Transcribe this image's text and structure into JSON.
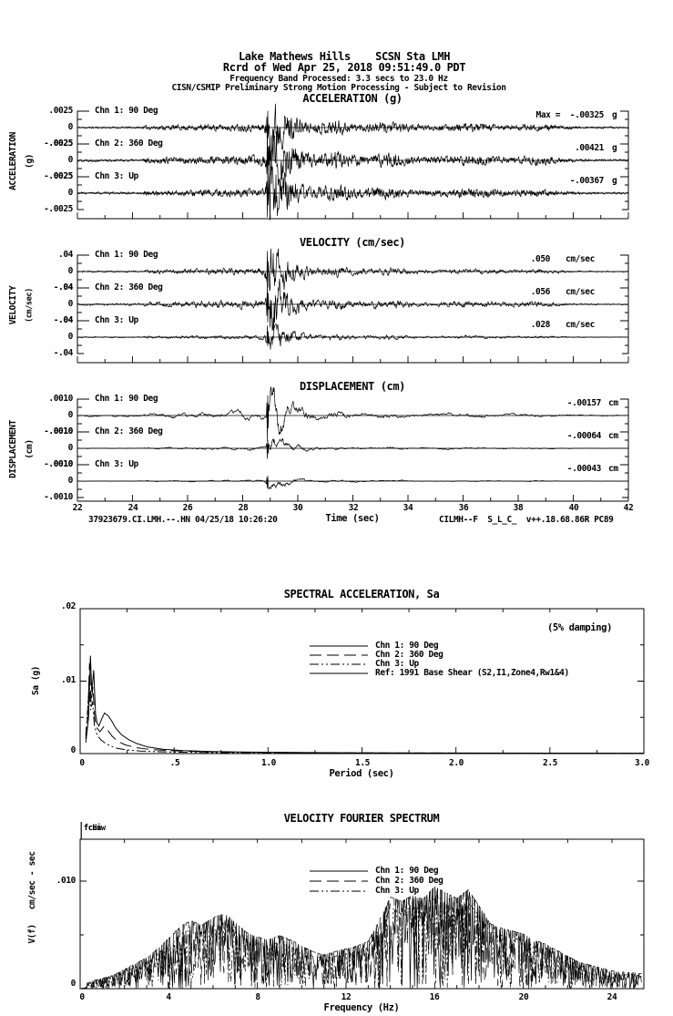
{
  "header": {
    "line1": "Lake Mathews Hills    SCSN Sta LMH",
    "line2": "Rcrd of Wed Apr 25, 2018 09:51:49.0 PDT",
    "line3": "Frequency Band Processed: 3.3 secs to 23.0 Hz",
    "line4": "CISN/CSMIP Preliminary Strong Motion Processing - Subject to Revision"
  },
  "time_series": {
    "sections": [
      {
        "title": "ACCELERATION (g)",
        "side_label": "ACCELERATION",
        "side_unit": "(g)",
        "ytick_pos": ".0025",
        "ytick_zero": "0",
        "ytick_neg": "-.0025",
        "channels": [
          {
            "label": "Chn 1: 90 Deg",
            "peak_text": "Max =  -.00325",
            "unit": "g"
          },
          {
            "label": "Chn 2: 360 Deg",
            "peak_text": ".00421",
            "unit": "g"
          },
          {
            "label": "Chn 3: Up",
            "peak_text": "-.00367",
            "unit": "g"
          }
        ]
      },
      {
        "title": "VELOCITY (cm/sec)",
        "side_label": "VELOCITY",
        "side_unit": "(cm/sec)",
        "ytick_pos": ".04",
        "ytick_zero": "0",
        "ytick_neg": "-.04",
        "channels": [
          {
            "label": "Chn 1: 90 Deg",
            "peak_text": ".050",
            "unit": "cm/sec"
          },
          {
            "label": "Chn 2: 360 Deg",
            "peak_text": ".056",
            "unit": "cm/sec"
          },
          {
            "label": "Chn 3: Up",
            "peak_text": ".028",
            "unit": "cm/sec"
          }
        ]
      },
      {
        "title": "DISPLACEMENT (cm)",
        "side_label": "DISPLACEMENT",
        "side_unit": "(cm)",
        "ytick_pos": ".0010",
        "ytick_zero": "0",
        "ytick_neg": "-.0010",
        "channels": [
          {
            "label": "Chn 1: 90 Deg",
            "peak_text": "-.00157",
            "unit": "cm"
          },
          {
            "label": "Chn 2: 360 Deg",
            "peak_text": "-.00064",
            "unit": "cm"
          },
          {
            "label": "Chn 3: Up",
            "peak_text": "-.00043",
            "unit": "cm"
          }
        ]
      }
    ],
    "x_axis": {
      "tick_labels": [
        "22",
        "24",
        "26",
        "28",
        "30",
        "32",
        "34",
        "36",
        "38",
        "40",
        "42"
      ],
      "label": "Time (sec)"
    },
    "footer_left": "37923679.CI.LMH.--.HN 04/25/18 10:26:20",
    "footer_right": "CILMH--F  S_L_C_  v++.18.68.86R PC89"
  },
  "sa_plot": {
    "title": "SPECTRAL ACCELERATION, Sa",
    "damping_note": "(5% damping)",
    "ylabel": "Sa (g)",
    "xlabel": "Period (sec)",
    "ytick_labels": [
      ".02",
      ".01",
      "0"
    ],
    "xtick_labels": [
      "0",
      ".5",
      "1.0",
      "1.5",
      "2.0",
      "2.5",
      "3.0"
    ],
    "legend": [
      "Chn 1: 90 Deg",
      "Chn 2: 360 Deg",
      "Chn 3: Up",
      "Ref: 1991 Base Shear (S2,I1,Zone4,Rw1&4)"
    ]
  },
  "fourier_plot": {
    "title": "VELOCITY FOURIER SPECTRUM",
    "ylabel": "V(f)   cm/sec - sec",
    "xlabel": "Frequency (Hz)",
    "ytick_label": ".010",
    "ytick_zero": "0",
    "xtick_labels": [
      "0",
      "4",
      "8",
      "12",
      "16",
      "20",
      "24"
    ],
    "fc_low": "fcLow",
    "fc_high": "fcHi",
    "legend": [
      "Chn 1: 90 Deg",
      "Chn 2: 360 Deg",
      "Chn 3: Up"
    ]
  },
  "chart_data": [
    {
      "type": "line",
      "id": "acceleration",
      "title": "ACCELERATION (g)",
      "unit": "g",
      "x": {
        "label": "Time (sec)",
        "min": 22,
        "max": 42
      },
      "trace_ylim": [
        -0.0025,
        0.0025
      ],
      "event_time_sec": 28.9,
      "series": [
        {
          "name": "Chn 1: 90 Deg",
          "peak_value": -0.00325
        },
        {
          "name": "Chn 2: 360 Deg",
          "peak_value": 0.00421
        },
        {
          "name": "Chn 3: Up",
          "peak_value": -0.00367
        }
      ]
    },
    {
      "type": "line",
      "id": "velocity",
      "title": "VELOCITY (cm/sec)",
      "unit": "cm/sec",
      "x": {
        "label": "Time (sec)",
        "min": 22,
        "max": 42
      },
      "trace_ylim": [
        -0.04,
        0.04
      ],
      "event_time_sec": 28.9,
      "series": [
        {
          "name": "Chn 1: 90 Deg",
          "peak_value": 0.05
        },
        {
          "name": "Chn 2: 360 Deg",
          "peak_value": 0.056
        },
        {
          "name": "Chn 3: Up",
          "peak_value": 0.028
        }
      ]
    },
    {
      "type": "line",
      "id": "displacement",
      "title": "DISPLACEMENT (cm)",
      "unit": "cm",
      "x": {
        "label": "Time (sec)",
        "min": 22,
        "max": 42
      },
      "trace_ylim": [
        -0.001,
        0.001
      ],
      "event_time_sec": 28.9,
      "series": [
        {
          "name": "Chn 1: 90 Deg",
          "peak_value": -0.00157
        },
        {
          "name": "Chn 2: 360 Deg",
          "peak_value": -0.00064
        },
        {
          "name": "Chn 3: Up",
          "peak_value": -0.00043
        }
      ]
    },
    {
      "type": "line",
      "id": "spectral_acceleration",
      "title": "SPECTRAL ACCELERATION, Sa",
      "xlabel": "Period (sec)",
      "ylabel": "Sa (g)",
      "xlim": [
        0,
        3.0
      ],
      "ylim": [
        0,
        0.02
      ],
      "damping": "5%",
      "series": [
        {
          "name": "Chn 1: 90 Deg",
          "style": "solid",
          "points": [
            [
              0.03,
              0.0015
            ],
            [
              0.045,
              0.005
            ],
            [
              0.055,
              0.0135
            ],
            [
              0.062,
              0.0085
            ],
            [
              0.072,
              0.0115
            ],
            [
              0.082,
              0.0055
            ],
            [
              0.09,
              0.0042
            ],
            [
              0.1,
              0.0038
            ],
            [
              0.115,
              0.0048
            ],
            [
              0.13,
              0.0056
            ],
            [
              0.15,
              0.0052
            ],
            [
              0.17,
              0.0044
            ],
            [
              0.19,
              0.0035
            ],
            [
              0.22,
              0.0026
            ],
            [
              0.26,
              0.0019
            ],
            [
              0.3,
              0.0014
            ],
            [
              0.36,
              0.0009
            ],
            [
              0.44,
              0.0006
            ],
            [
              0.55,
              0.0004
            ],
            [
              0.7,
              0.00028
            ],
            [
              0.9,
              0.0002
            ],
            [
              1.2,
              0.00014
            ],
            [
              1.6,
              0.0001
            ],
            [
              2.0,
              8e-05
            ],
            [
              2.5,
              6e-05
            ],
            [
              3.0,
              5e-05
            ]
          ]
        },
        {
          "name": "Chn 2: 360 Deg",
          "style": "long-dash",
          "points": [
            [
              0.03,
              0.002
            ],
            [
              0.042,
              0.006
            ],
            [
              0.05,
              0.0125
            ],
            [
              0.058,
              0.007
            ],
            [
              0.068,
              0.0092
            ],
            [
              0.078,
              0.0048
            ],
            [
              0.09,
              0.0035
            ],
            [
              0.105,
              0.003
            ],
            [
              0.125,
              0.0037
            ],
            [
              0.145,
              0.0033
            ],
            [
              0.17,
              0.0024
            ],
            [
              0.2,
              0.0017
            ],
            [
              0.24,
              0.0012
            ],
            [
              0.3,
              0.0008
            ],
            [
              0.38,
              0.00055
            ],
            [
              0.5,
              0.00038
            ],
            [
              0.65,
              0.00026
            ],
            [
              0.85,
              0.00018
            ],
            [
              1.2,
              0.00012
            ],
            [
              1.7,
              8e-05
            ],
            [
              2.4,
              6e-05
            ],
            [
              3.0,
              5e-05
            ]
          ]
        },
        {
          "name": "Chn 3: Up",
          "style": "dash-dot-dot",
          "points": [
            [
              0.03,
              0.0025
            ],
            [
              0.04,
              0.0062
            ],
            [
              0.048,
              0.0098
            ],
            [
              0.056,
              0.006
            ],
            [
              0.066,
              0.0072
            ],
            [
              0.076,
              0.0038
            ],
            [
              0.09,
              0.0026
            ],
            [
              0.11,
              0.0019
            ],
            [
              0.135,
              0.0014
            ],
            [
              0.165,
              0.001
            ],
            [
              0.2,
              0.0007
            ],
            [
              0.25,
              0.0005
            ],
            [
              0.32,
              0.00035
            ],
            [
              0.42,
              0.00025
            ],
            [
              0.55,
              0.00018
            ],
            [
              0.75,
              0.00012
            ],
            [
              1.0,
              9e-05
            ],
            [
              1.5,
              6e-05
            ],
            [
              2.2,
              4e-05
            ],
            [
              3.0,
              3e-05
            ]
          ]
        },
        {
          "name": "Ref: 1991 Base Shear (S2,I1,Zone4,Rw1&4)",
          "style": "solid",
          "points": []
        }
      ]
    },
    {
      "type": "line",
      "id": "velocity_fourier_spectrum",
      "title": "VELOCITY FOURIER SPECTRUM",
      "xlabel": "Frequency (Hz)",
      "ylabel": "V(f) cm/sec - sec",
      "xlim": [
        0,
        25.4
      ],
      "ylim": [
        0,
        0.0139
      ],
      "marker_labels": [
        "fcLow",
        "fcHi"
      ],
      "envelope_cm_sec_sec": [
        [
          0,
          0.0002
        ],
        [
          0.5,
          0.0005
        ],
        [
          1,
          0.0007
        ],
        [
          1.5,
          0.0009
        ],
        [
          2,
          0.0013
        ],
        [
          2.5,
          0.0017
        ],
        [
          3,
          0.0021
        ],
        [
          3.5,
          0.0027
        ],
        [
          4,
          0.0034
        ],
        [
          4.5,
          0.0042
        ],
        [
          5,
          0.0046
        ],
        [
          5.5,
          0.0043
        ],
        [
          6,
          0.0048
        ],
        [
          6.5,
          0.0051
        ],
        [
          7,
          0.0045
        ],
        [
          7.5,
          0.0038
        ],
        [
          8,
          0.0035
        ],
        [
          8.5,
          0.0033
        ],
        [
          9,
          0.0036
        ],
        [
          9.5,
          0.0033
        ],
        [
          10,
          0.0029
        ],
        [
          10.5,
          0.0025
        ],
        [
          11,
          0.0023
        ],
        [
          11.5,
          0.0025
        ],
        [
          12,
          0.0027
        ],
        [
          12.5,
          0.0029
        ],
        [
          13,
          0.0032
        ],
        [
          13.5,
          0.0046
        ],
        [
          14,
          0.0062
        ],
        [
          14.5,
          0.0059
        ],
        [
          15,
          0.0063
        ],
        [
          15.5,
          0.0061
        ],
        [
          16,
          0.0069
        ],
        [
          16.5,
          0.0065
        ],
        [
          17,
          0.0061
        ],
        [
          17.5,
          0.0067
        ],
        [
          18,
          0.0056
        ],
        [
          18.5,
          0.0044
        ],
        [
          19,
          0.0041
        ],
        [
          19.5,
          0.0039
        ],
        [
          20,
          0.0037
        ],
        [
          20.5,
          0.0033
        ],
        [
          21,
          0.003
        ],
        [
          21.5,
          0.0026
        ],
        [
          22,
          0.0022
        ],
        [
          22.5,
          0.0018
        ],
        [
          23,
          0.0016
        ],
        [
          24,
          0.0012
        ],
        [
          25.4,
          0.001
        ]
      ],
      "series": [
        {
          "name": "Chn 1: 90 Deg",
          "style": "solid"
        },
        {
          "name": "Chn 2: 360 Deg",
          "style": "long-dash"
        },
        {
          "name": "Chn 3: Up",
          "style": "dash-dot-dot"
        }
      ]
    }
  ]
}
